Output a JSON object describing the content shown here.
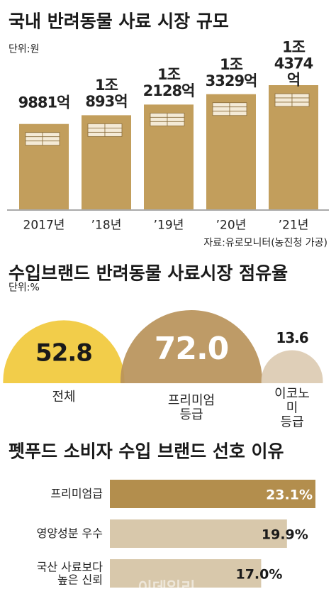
{
  "chart_data": [
    {
      "type": "bar",
      "title": "국내 반려동물 사료 시장 규모",
      "unit": "단위:원",
      "categories": [
        "2017년",
        "’18년",
        "’19년",
        "’20년",
        "’21년"
      ],
      "values": [
        9881,
        10893,
        12128,
        13329,
        14374
      ],
      "value_labels": [
        "9881억",
        "1조\n893억",
        "1조\n2128억",
        "1조\n3329억",
        "1조\n4374억"
      ],
      "color": "#c29e5c",
      "source": "자료:유로모니터(농진청 가공)"
    },
    {
      "type": "bubble",
      "title": "수입브랜드 반려동물 사료시장 점유율",
      "unit": "단위:%",
      "categories": [
        "전체",
        "프리미엄\n등급",
        "이코노미\n등급"
      ],
      "values": [
        52.8,
        72.0,
        13.6
      ],
      "value_labels": [
        "52.8",
        "72.0",
        "13.6"
      ],
      "colors": [
        "#f1c93b",
        "#b8935a",
        "#dccbb2"
      ]
    },
    {
      "type": "hbar",
      "title": "펫푸드 소비자 수입 브랜드 선호 이유",
      "categories": [
        "프리미엄급",
        "영양성분 우수",
        "국산 사료보다\n높은 신뢰"
      ],
      "values": [
        23.1,
        19.9,
        17.0
      ],
      "value_labels": [
        "23.1%",
        "19.9%",
        "17.0%"
      ],
      "colors": [
        "#b38e4d",
        "#d8c8ab",
        "#d8c8ab"
      ],
      "watermark": "이데일리"
    }
  ]
}
